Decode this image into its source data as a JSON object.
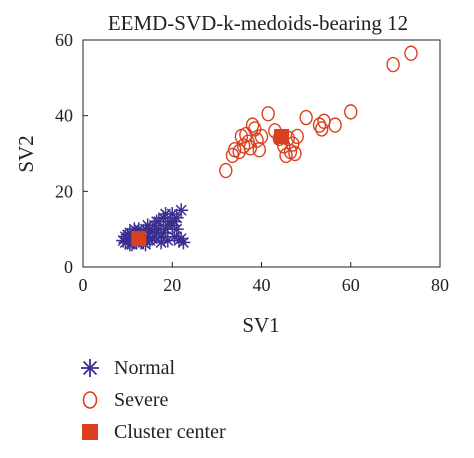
{
  "chart_data": {
    "type": "scatter",
    "title": "EEMD-SVD-k-medoids-bearing 12",
    "xlabel": "SV1",
    "ylabel": "SV2",
    "xlim": [
      0,
      80
    ],
    "ylim": [
      0,
      60
    ],
    "xticks": [
      "0",
      "20",
      "40",
      "60",
      "80"
    ],
    "yticks": [
      "0",
      "20",
      "40",
      "60"
    ],
    "grid": false,
    "legend_position": "below",
    "series": [
      {
        "name": "Normal",
        "marker": "asterisk",
        "color": "#3b2f8f",
        "points": [
          [
            9,
            7
          ],
          [
            9.5,
            6.5
          ],
          [
            10,
            7.5
          ],
          [
            10.5,
            6
          ],
          [
            11,
            8
          ],
          [
            11.5,
            7
          ],
          [
            12,
            6.5
          ],
          [
            12.5,
            8.5
          ],
          [
            13,
            7
          ],
          [
            13.5,
            9
          ],
          [
            14,
            6
          ],
          [
            14.5,
            8
          ],
          [
            15,
            10
          ],
          [
            15.5,
            7.5
          ],
          [
            16,
            11
          ],
          [
            16.5,
            9
          ],
          [
            17,
            12
          ],
          [
            17.5,
            8
          ],
          [
            18,
            13
          ],
          [
            18.5,
            10
          ],
          [
            19,
            7
          ],
          [
            19.5,
            12
          ],
          [
            20,
            11
          ],
          [
            20.5,
            8
          ],
          [
            21,
            13
          ],
          [
            21.5,
            7
          ],
          [
            22,
            15
          ],
          [
            22.5,
            6.5
          ],
          [
            10,
            8.5
          ],
          [
            11,
            6
          ],
          [
            12,
            9
          ],
          [
            13,
            8
          ],
          [
            14,
            10
          ],
          [
            15,
            7
          ],
          [
            16,
            8
          ],
          [
            17,
            10
          ],
          [
            18,
            9
          ],
          [
            19,
            11
          ],
          [
            20,
            14
          ],
          [
            21,
            10
          ],
          [
            22,
            7.5
          ],
          [
            9.5,
            8
          ],
          [
            10.5,
            9
          ],
          [
            12.5,
            10
          ],
          [
            14.5,
            11
          ],
          [
            16.5,
            12
          ],
          [
            18.5,
            14
          ],
          [
            20.5,
            12
          ],
          [
            13.5,
            6.5
          ],
          [
            15.5,
            9.5
          ],
          [
            17.5,
            6.5
          ],
          [
            11.5,
            10
          ]
        ]
      },
      {
        "name": "Severe",
        "marker": "circle",
        "color": "#d9401f",
        "points": [
          [
            32,
            25.5
          ],
          [
            33.5,
            29.5
          ],
          [
            34,
            31
          ],
          [
            35,
            30.5
          ],
          [
            35.5,
            34.5
          ],
          [
            36,
            32
          ],
          [
            36.5,
            35
          ],
          [
            37,
            33
          ],
          [
            37.5,
            31.5
          ],
          [
            38,
            37.5
          ],
          [
            38.5,
            36.5
          ],
          [
            39,
            33.5
          ],
          [
            39.5,
            31
          ],
          [
            40,
            34.5
          ],
          [
            41.5,
            40.5
          ],
          [
            43,
            36
          ],
          [
            44,
            34
          ],
          [
            45,
            32
          ],
          [
            45.5,
            29.5
          ],
          [
            46,
            34
          ],
          [
            46.5,
            30.5
          ],
          [
            47,
            32.5
          ],
          [
            47.5,
            30
          ],
          [
            48,
            34.5
          ],
          [
            50,
            39.5
          ],
          [
            53,
            37.5
          ],
          [
            53.5,
            36.5
          ],
          [
            54,
            38.5
          ],
          [
            56.5,
            37.5
          ],
          [
            60,
            41
          ],
          [
            69.5,
            53.5
          ],
          [
            73.5,
            56.5
          ]
        ]
      },
      {
        "name": "Cluster center",
        "marker": "square",
        "color": "#d9401f",
        "points": [
          [
            12.5,
            7.5
          ],
          [
            44.5,
            34.5
          ]
        ]
      }
    ]
  }
}
